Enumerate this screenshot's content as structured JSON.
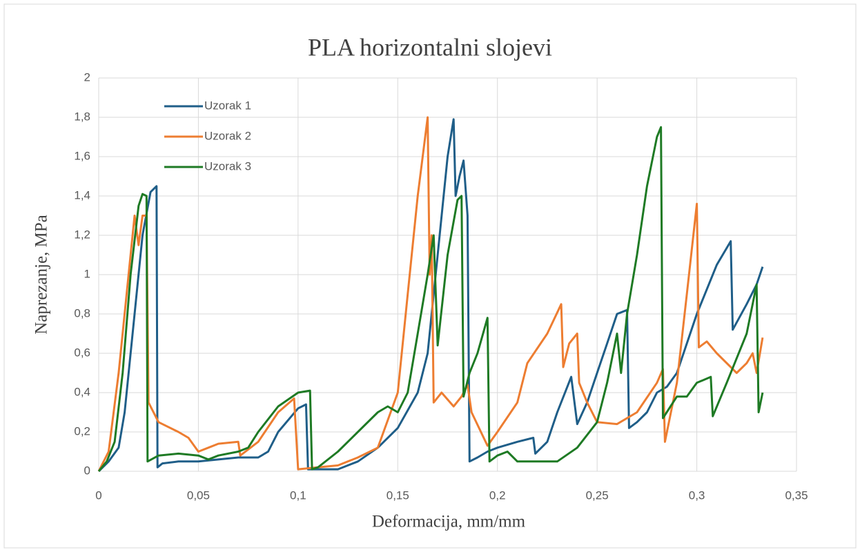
{
  "chart_data": {
    "type": "line",
    "title": "PLA horizontalni slojevi",
    "xlabel": "Deformacija, mm/mm",
    "ylabel": "Naprezanje, MPa",
    "xlim": [
      0,
      0.35
    ],
    "xticks": [
      0,
      {
        "value": 0.05,
        "label": "0,05"
      },
      {
        "value": 0.1,
        "label": "0,1"
      },
      {
        "value": 0.15,
        "label": "0,15"
      },
      {
        "value": 0.2,
        "label": "0,2"
      },
      {
        "value": 0.25,
        "label": "0,25"
      },
      {
        "value": 0.3,
        "label": "0,3"
      },
      {
        "value": 0.35,
        "label": "0,35"
      }
    ],
    "ylim": [
      0,
      2
    ],
    "yticks": [
      0,
      {
        "value": 0.2,
        "label": "0,2"
      },
      {
        "value": 0.4,
        "label": "0,4"
      },
      {
        "value": 0.6,
        "label": "0,6"
      },
      {
        "value": 0.8,
        "label": "0,8"
      },
      1,
      {
        "value": 1.2,
        "label": "1,2"
      },
      {
        "value": 1.4,
        "label": "1,4"
      },
      {
        "value": 1.6,
        "label": "1,6"
      },
      {
        "value": 1.8,
        "label": "1,8"
      },
      2
    ],
    "grid": true,
    "legend": "upper left",
    "series": [
      {
        "name": "Uzorak 1",
        "color": "#1f5e88",
        "x": [
          0,
          0.005,
          0.01,
          0.013,
          0.018,
          0.022,
          0.026,
          0.029,
          0.0295,
          0.032,
          0.04,
          0.05,
          0.06,
          0.07,
          0.08,
          0.085,
          0.09,
          0.1,
          0.104,
          0.105,
          0.12,
          0.13,
          0.14,
          0.15,
          0.16,
          0.165,
          0.17,
          0.175,
          0.178,
          0.179,
          0.181,
          0.183,
          0.185,
          0.186,
          0.19,
          0.195,
          0.2,
          0.21,
          0.218,
          0.219,
          0.225,
          0.23,
          0.237,
          0.24,
          0.245,
          0.25,
          0.255,
          0.26,
          0.265,
          0.266,
          0.27,
          0.275,
          0.28,
          0.285,
          0.29,
          0.3,
          0.31,
          0.317,
          0.318,
          0.325,
          0.33,
          0.333
        ],
        "values": [
          0,
          0.05,
          0.12,
          0.3,
          0.8,
          1.2,
          1.42,
          1.45,
          0.02,
          0.04,
          0.05,
          0.05,
          0.06,
          0.07,
          0.07,
          0.1,
          0.2,
          0.32,
          0.34,
          0.01,
          0.01,
          0.05,
          0.12,
          0.22,
          0.4,
          0.6,
          1.1,
          1.6,
          1.79,
          1.4,
          1.5,
          1.58,
          1.3,
          0.05,
          0.07,
          0.1,
          0.12,
          0.15,
          0.17,
          0.09,
          0.15,
          0.3,
          0.48,
          0.24,
          0.35,
          0.5,
          0.65,
          0.8,
          0.82,
          0.22,
          0.25,
          0.3,
          0.4,
          0.43,
          0.5,
          0.8,
          1.05,
          1.17,
          0.72,
          0.85,
          0.95,
          1.04
        ]
      },
      {
        "name": "Uzorak 2",
        "color": "#ed7d31",
        "x": [
          0,
          0.005,
          0.01,
          0.015,
          0.018,
          0.02,
          0.022,
          0.024,
          0.025,
          0.03,
          0.04,
          0.045,
          0.05,
          0.055,
          0.06,
          0.07,
          0.071,
          0.08,
          0.09,
          0.098,
          0.1,
          0.11,
          0.12,
          0.13,
          0.14,
          0.15,
          0.155,
          0.16,
          0.165,
          0.166,
          0.167,
          0.168,
          0.172,
          0.178,
          0.182,
          0.185,
          0.187,
          0.195,
          0.2,
          0.21,
          0.215,
          0.225,
          0.232,
          0.233,
          0.236,
          0.24,
          0.241,
          0.245,
          0.25,
          0.26,
          0.27,
          0.28,
          0.283,
          0.284,
          0.29,
          0.295,
          0.3,
          0.301,
          0.305,
          0.31,
          0.32,
          0.325,
          0.328,
          0.33,
          0.333
        ],
        "values": [
          0,
          0.1,
          0.5,
          1.0,
          1.3,
          1.15,
          1.3,
          1.3,
          0.35,
          0.25,
          0.2,
          0.17,
          0.1,
          0.12,
          0.14,
          0.15,
          0.08,
          0.15,
          0.3,
          0.37,
          0.01,
          0.02,
          0.03,
          0.07,
          0.12,
          0.4,
          0.9,
          1.4,
          1.8,
          1.0,
          1.2,
          0.35,
          0.4,
          0.33,
          0.38,
          0.44,
          0.3,
          0.13,
          0.2,
          0.35,
          0.55,
          0.7,
          0.85,
          0.53,
          0.65,
          0.7,
          0.45,
          0.35,
          0.25,
          0.24,
          0.3,
          0.45,
          0.52,
          0.15,
          0.45,
          0.9,
          1.36,
          0.63,
          0.66,
          0.6,
          0.5,
          0.55,
          0.6,
          0.5,
          0.68
        ]
      },
      {
        "name": "Uzorak 3",
        "color": "#1e7a24",
        "x": [
          0,
          0.004,
          0.008,
          0.012,
          0.016,
          0.02,
          0.022,
          0.024,
          0.0245,
          0.03,
          0.04,
          0.05,
          0.055,
          0.06,
          0.07,
          0.075,
          0.08,
          0.09,
          0.1,
          0.106,
          0.107,
          0.11,
          0.12,
          0.13,
          0.14,
          0.145,
          0.15,
          0.155,
          0.16,
          0.165,
          0.168,
          0.17,
          0.175,
          0.18,
          0.182,
          0.183,
          0.186,
          0.19,
          0.195,
          0.196,
          0.2,
          0.205,
          0.21,
          0.22,
          0.23,
          0.24,
          0.25,
          0.255,
          0.26,
          0.262,
          0.265,
          0.27,
          0.275,
          0.28,
          0.282,
          0.283,
          0.29,
          0.295,
          0.3,
          0.307,
          0.308,
          0.315,
          0.325,
          0.33,
          0.331,
          0.333
        ],
        "values": [
          0,
          0.05,
          0.15,
          0.5,
          1.0,
          1.35,
          1.41,
          1.4,
          0.05,
          0.08,
          0.09,
          0.08,
          0.06,
          0.08,
          0.1,
          0.12,
          0.2,
          0.33,
          0.4,
          0.41,
          0.01,
          0.02,
          0.1,
          0.2,
          0.3,
          0.33,
          0.3,
          0.4,
          0.7,
          1.0,
          1.2,
          0.64,
          1.1,
          1.38,
          1.4,
          0.38,
          0.5,
          0.6,
          0.78,
          0.05,
          0.08,
          0.1,
          0.05,
          0.05,
          0.05,
          0.12,
          0.25,
          0.45,
          0.7,
          0.5,
          0.8,
          1.1,
          1.45,
          1.7,
          1.75,
          0.27,
          0.38,
          0.38,
          0.45,
          0.48,
          0.28,
          0.45,
          0.7,
          0.95,
          0.3,
          0.4
        ]
      }
    ]
  }
}
